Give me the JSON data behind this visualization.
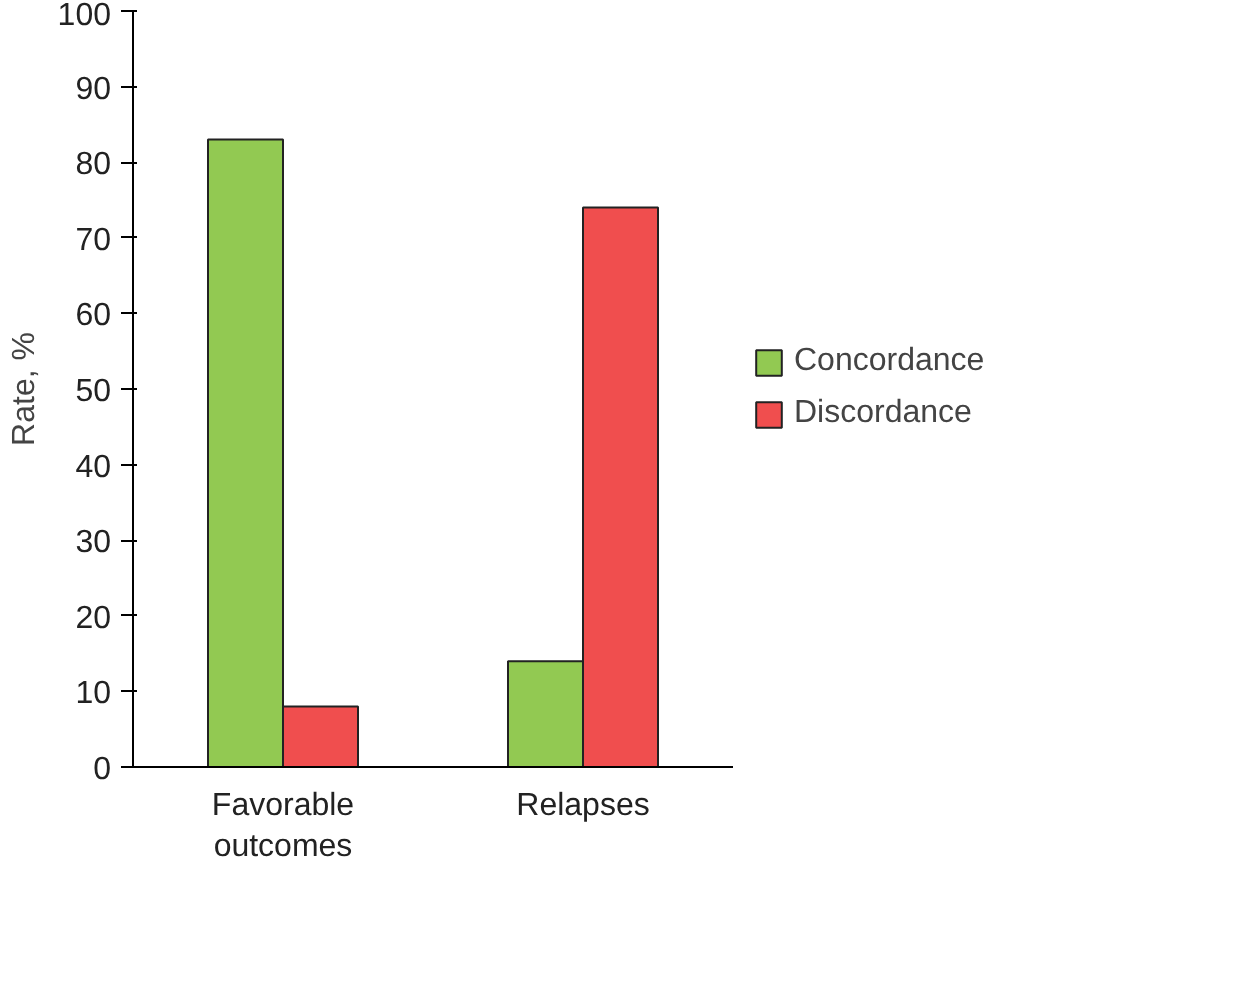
{
  "chart_data": {
    "type": "bar",
    "categories": [
      "Favorable outcomes",
      "Relapses"
    ],
    "ylabel": "Rate, %",
    "ylim": [
      0,
      100
    ],
    "yticks": [
      0,
      10,
      20,
      30,
      40,
      50,
      60,
      70,
      80,
      90,
      100
    ],
    "grid": false,
    "legend": "right",
    "series": [
      {
        "name": "Concordance",
        "color": "#92c952",
        "values": [
          83,
          14
        ]
      },
      {
        "name": "Discordance",
        "color": "#f04e4e",
        "values": [
          8,
          74
        ]
      }
    ]
  }
}
